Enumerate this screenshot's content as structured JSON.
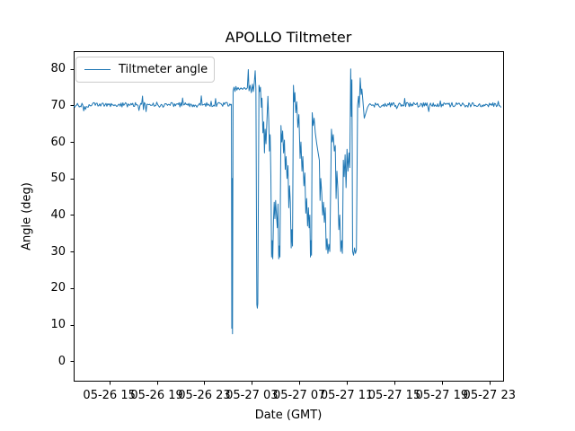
{
  "figure": {
    "background": "#ffffff",
    "title": "APOLLO Tiltmeter",
    "xlabel": "Date (GMT)",
    "ylabel": "Angle (deg)",
    "legend_label": "Tiltmeter angle"
  },
  "chart_data": {
    "type": "line",
    "title": "APOLLO Tiltmeter",
    "xlabel": "Date (GMT)",
    "ylabel": "Angle (deg)",
    "grid": false,
    "legend": {
      "position": "upper left",
      "entries": [
        "Tiltmeter angle"
      ]
    },
    "line_color": "#1f77b4",
    "axis_color": "#000000",
    "x_hours_origin_label": "05-26 12:00",
    "xlim_hours": [
      0,
      36.15
    ],
    "ylim": [
      -5.6,
      84.6
    ],
    "yticks": [
      0,
      10,
      20,
      30,
      40,
      50,
      60,
      70,
      80
    ],
    "xticks": [
      {
        "hours": 3,
        "label": "05-26 15"
      },
      {
        "hours": 7,
        "label": "05-26 19"
      },
      {
        "hours": 11,
        "label": "05-26 23"
      },
      {
        "hours": 15,
        "label": "05-27 03"
      },
      {
        "hours": 19,
        "label": "05-27 07"
      },
      {
        "hours": 23,
        "label": "05-27 11"
      },
      {
        "hours": 27,
        "label": "05-27 15"
      },
      {
        "hours": 31,
        "label": "05-27 19"
      },
      {
        "hours": 35,
        "label": "05-27 23"
      }
    ],
    "series": [
      {
        "name": "Tiltmeter angle",
        "segments": [
          {
            "kind": "noise",
            "t0": 0.02,
            "t1": 13.26,
            "step": 0.075,
            "mean": 70.15,
            "amp": 1.3,
            "spike_prob": 0.07,
            "spike_amp": 2.2,
            "seed": 526
          },
          {
            "kind": "points",
            "points": [
              [
                13.28,
                70.3
              ],
              [
                13.31,
                9.0
              ],
              [
                13.34,
                50.0
              ],
              [
                13.37,
                7.5
              ],
              [
                13.42,
                74.0
              ],
              [
                13.5,
                75.0
              ],
              [
                13.58,
                73.8
              ],
              [
                13.66,
                75.2
              ],
              [
                13.74,
                74.2
              ],
              [
                13.84,
                74.9
              ],
              [
                13.95,
                74.3
              ],
              [
                14.08,
                74.8
              ],
              [
                14.22,
                74.4
              ],
              [
                14.36,
                74.9
              ],
              [
                14.5,
                74.4
              ],
              [
                14.62,
                74.8
              ],
              [
                14.7,
                79.8
              ],
              [
                14.76,
                74.0
              ],
              [
                14.85,
                75.5
              ],
              [
                14.95,
                73.5
              ],
              [
                15.05,
                75.8
              ],
              [
                15.12,
                73.8
              ],
              [
                15.2,
                76.0
              ],
              [
                15.28,
                79.5
              ],
              [
                15.34,
                74.5
              ],
              [
                15.42,
                15.5
              ],
              [
                15.46,
                14.5
              ],
              [
                15.5,
                15.8
              ],
              [
                15.6,
                75.5
              ],
              [
                15.66,
                73.8
              ],
              [
                15.72,
                75.0
              ],
              [
                15.8,
                69.5
              ],
              [
                15.85,
                72.0
              ],
              [
                15.93,
                62.5
              ],
              [
                16.0,
                65.5
              ],
              [
                16.06,
                57.0
              ],
              [
                16.12,
                63.5
              ],
              [
                16.19,
                59.5
              ],
              [
                16.27,
                66.0
              ],
              [
                16.35,
                72.5
              ],
              [
                16.42,
                66.0
              ],
              [
                16.48,
                57.5
              ],
              [
                16.54,
                62.0
              ],
              [
                16.6,
                50.5
              ],
              [
                16.66,
                28.5
              ],
              [
                16.71,
                33.0
              ],
              [
                16.76,
                28.0
              ],
              [
                16.82,
                38.5
              ],
              [
                16.88,
                43.5
              ],
              [
                16.94,
                39.0
              ],
              [
                17.0,
                44.0
              ],
              [
                17.07,
                40.0
              ],
              [
                17.14,
                36.5
              ],
              [
                17.2,
                43.0
              ],
              [
                17.26,
                28.0
              ],
              [
                17.31,
                31.5
              ],
              [
                17.36,
                28.5
              ],
              [
                17.45,
                64.5
              ],
              [
                17.52,
                60.0
              ],
              [
                17.59,
                63.0
              ],
              [
                17.67,
                57.0
              ],
              [
                17.74,
                60.5
              ],
              [
                17.81,
                52.5
              ],
              [
                17.88,
                56.0
              ],
              [
                17.96,
                50.0
              ],
              [
                18.04,
                53.5
              ],
              [
                18.11,
                42.0
              ],
              [
                18.17,
                48.0
              ],
              [
                18.24,
                43.5
              ],
              [
                18.31,
                31.0
              ],
              [
                18.36,
                36.0
              ],
              [
                18.42,
                31.5
              ],
              [
                18.5,
                75.5
              ],
              [
                18.56,
                71.0
              ],
              [
                18.62,
                73.5
              ],
              [
                18.7,
                68.0
              ],
              [
                18.78,
                71.0
              ],
              [
                18.87,
                64.0
              ],
              [
                18.96,
                67.5
              ],
              [
                19.06,
                55.5
              ],
              [
                19.13,
                60.0
              ],
              [
                19.22,
                52.0
              ],
              [
                19.29,
                56.0
              ],
              [
                19.38,
                48.0
              ],
              [
                19.46,
                51.5
              ],
              [
                19.54,
                40.5
              ],
              [
                19.61,
                44.5
              ],
              [
                19.69,
                37.0
              ],
              [
                19.76,
                42.0
              ],
              [
                19.82,
                36.5
              ],
              [
                19.88,
                40.0
              ],
              [
                19.93,
                28.5
              ],
              [
                19.98,
                33.0
              ],
              [
                20.02,
                29.0
              ],
              [
                20.08,
                68.0
              ],
              [
                20.16,
                64.5
              ],
              [
                20.24,
                66.5
              ],
              [
                20.34,
                62.5
              ],
              [
                20.46,
                59.5
              ],
              [
                20.58,
                57.0
              ],
              [
                20.68,
                55.0
              ],
              [
                20.74,
                44.0
              ],
              [
                20.8,
                50.0
              ],
              [
                20.88,
                46.0
              ],
              [
                20.96,
                40.0
              ],
              [
                21.03,
                43.5
              ],
              [
                21.1,
                38.0
              ],
              [
                21.18,
                42.0
              ],
              [
                21.26,
                30.5
              ],
              [
                21.33,
                33.5
              ],
              [
                21.4,
                29.5
              ],
              [
                21.48,
                32.0
              ],
              [
                21.56,
                30.0
              ],
              [
                21.7,
                63.5
              ],
              [
                21.77,
                60.0
              ],
              [
                21.85,
                62.0
              ],
              [
                21.94,
                57.5
              ],
              [
                22.02,
                59.0
              ],
              [
                22.09,
                44.5
              ],
              [
                22.16,
                52.0
              ],
              [
                22.24,
                47.0
              ],
              [
                22.32,
                36.0
              ],
              [
                22.4,
                40.0
              ],
              [
                22.48,
                30.0
              ],
              [
                22.55,
                33.0
              ],
              [
                22.62,
                29.5
              ],
              [
                22.7,
                55.0
              ],
              [
                22.77,
                50.5
              ],
              [
                22.85,
                56.5
              ],
              [
                22.93,
                47.5
              ],
              [
                23.01,
                58.0
              ],
              [
                23.09,
                52.0
              ],
              [
                23.17,
                57.0
              ],
              [
                23.24,
                53.0
              ],
              [
                23.32,
                80.0
              ],
              [
                23.38,
                67.0
              ],
              [
                23.42,
                77.0
              ],
              [
                23.48,
                30.0
              ],
              [
                23.56,
                29.0
              ],
              [
                23.64,
                31.0
              ],
              [
                23.72,
                29.5
              ],
              [
                23.8,
                30.5
              ],
              [
                23.9,
                70.0
              ],
              [
                23.98,
                72.5
              ],
              [
                24.04,
                69.5
              ],
              [
                24.12,
                77.5
              ],
              [
                24.2,
                73.0
              ],
              [
                24.26,
                74.5
              ],
              [
                24.34,
                71.5
              ],
              [
                24.46,
                66.5
              ],
              [
                24.6,
                68.0
              ],
              [
                24.74,
                69.5
              ],
              [
                24.86,
                70.2
              ]
            ]
          },
          {
            "kind": "noise",
            "t0": 24.94,
            "t1": 36.02,
            "step": 0.075,
            "mean": 70.15,
            "amp": 1.3,
            "spike_prob": 0.07,
            "spike_amp": 2.2,
            "seed": 527
          }
        ]
      }
    ]
  }
}
